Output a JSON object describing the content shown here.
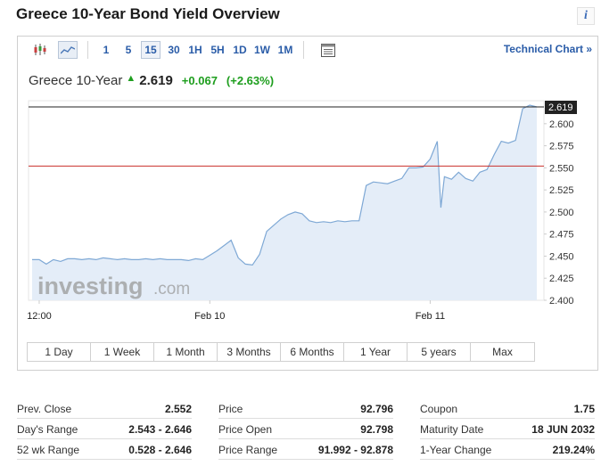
{
  "page": {
    "title": "Greece 10-Year Bond Yield Overview"
  },
  "toolbar": {
    "periods": [
      "1",
      "5",
      "15",
      "30",
      "1H",
      "5H",
      "1D",
      "1W",
      "1M"
    ],
    "active_period": "15",
    "technical_link": "Technical Chart »"
  },
  "quote": {
    "name": "Greece 10-Year",
    "price": "2.619",
    "change": "+0.067",
    "change_pct": "(+2.63%)",
    "up_color": "#1e9e1e"
  },
  "chart_data": {
    "type": "area",
    "y_ticks": [
      "2.600",
      "2.575",
      "2.550",
      "2.525",
      "2.500",
      "2.475",
      "2.450",
      "2.425",
      "2.400"
    ],
    "ylim": [
      2.4,
      2.62
    ],
    "x_labels": [
      {
        "label": "12:00",
        "x": 1
      },
      {
        "label": "Feb 10",
        "x": 25
      },
      {
        "label": "Feb 11",
        "x": 56
      }
    ],
    "xlim": [
      -0.5,
      72
    ],
    "last_price_label": "2.619",
    "last_price_line": 2.619,
    "prev_close_line": 2.552,
    "line_color": "#7ea8d5",
    "fill_color": "#e4edf8",
    "prev_close_color": "#c9302c",
    "series_x": [
      0,
      1,
      2,
      3,
      4,
      5,
      6,
      7,
      8,
      9,
      10,
      11,
      12,
      13,
      14,
      15,
      16,
      17,
      18,
      19,
      20,
      21,
      22,
      23,
      24,
      25,
      26,
      27,
      28,
      29,
      30,
      31,
      32,
      33,
      34,
      35,
      36,
      37,
      38,
      39,
      40,
      41,
      42,
      43,
      44,
      45,
      46,
      47,
      48,
      49,
      50,
      51,
      52,
      53,
      54,
      55,
      56,
      57,
      57.5,
      58,
      59,
      60,
      61,
      62,
      63,
      64,
      65,
      66,
      67,
      68,
      69,
      70,
      71
    ],
    "series_y": [
      2.446,
      2.446,
      2.441,
      2.446,
      2.444,
      2.447,
      2.447,
      2.446,
      2.447,
      2.446,
      2.448,
      2.447,
      2.446,
      2.447,
      2.446,
      2.446,
      2.447,
      2.446,
      2.447,
      2.446,
      2.446,
      2.446,
      2.445,
      2.447,
      2.446,
      2.451,
      2.456,
      2.462,
      2.468,
      2.448,
      2.441,
      2.44,
      2.452,
      2.478,
      2.485,
      2.492,
      2.497,
      2.5,
      2.498,
      2.49,
      2.488,
      2.489,
      2.488,
      2.49,
      2.489,
      2.49,
      2.49,
      2.53,
      2.534,
      2.533,
      2.532,
      2.535,
      2.538,
      2.55,
      2.55,
      2.551,
      2.56,
      2.58,
      2.505,
      2.54,
      2.537,
      2.545,
      2.538,
      2.535,
      2.545,
      2.548,
      2.565,
      2.58,
      2.578,
      2.581,
      2.617,
      2.621,
      2.619
    ]
  },
  "range_buttons": [
    "1 Day",
    "1 Week",
    "1 Month",
    "3 Months",
    "6 Months",
    "1 Year",
    "5 years",
    "Max"
  ],
  "stats": [
    [
      {
        "label": "Prev. Close",
        "value": "2.552"
      },
      {
        "label": "Day's Range",
        "value": "2.543 - 2.646"
      },
      {
        "label": "52 wk Range",
        "value": "0.528 - 2.646"
      }
    ],
    [
      {
        "label": "Price",
        "value": "92.796"
      },
      {
        "label": "Price Open",
        "value": "92.798"
      },
      {
        "label": "Price Range",
        "value": "91.992 - 92.878"
      }
    ],
    [
      {
        "label": "Coupon",
        "value": "1.75"
      },
      {
        "label": "Maturity Date",
        "value": "18 JUN 2032"
      },
      {
        "label": "1-Year Change",
        "value": "219.24%"
      }
    ]
  ],
  "watermark": {
    "brand": "investing",
    "suffix": ".com"
  }
}
